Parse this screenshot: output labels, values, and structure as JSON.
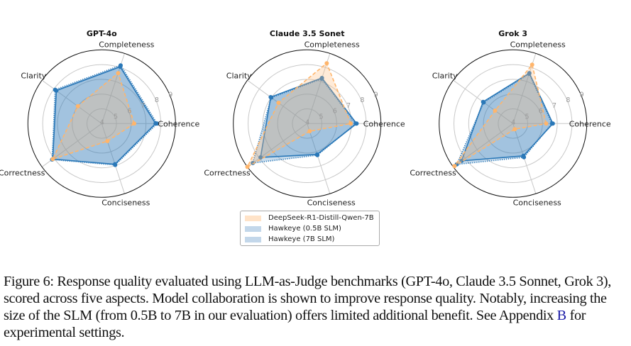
{
  "chart_data": [
    {
      "type": "radar",
      "title": "GPT-4o",
      "axes": [
        "Coherence",
        "Completeness",
        "Clarity",
        "Correctness",
        "Conciseness"
      ],
      "rlim": [
        4,
        9
      ],
      "rticks": [
        "4",
        "5",
        "6",
        "7",
        "8",
        "9"
      ],
      "grid": true,
      "series": [
        {
          "name": "DeepSeek-R1-Distill-Qwen-7B",
          "values": [
            6.2,
            7.6,
            6.0,
            8.1,
            5.25
          ]
        },
        {
          "name": "Hawkeye (0.5B SLM)",
          "values": [
            7.75,
            8.15,
            7.9,
            8.15,
            6.95
          ]
        },
        {
          "name": "Hawkeye (7B SLM)",
          "values": [
            7.65,
            8.05,
            7.8,
            8.1,
            6.9
          ]
        }
      ]
    },
    {
      "type": "radar",
      "title": "Claude 3.5 Sonet",
      "axes": [
        "Coherence",
        "Completeness",
        "Clarity",
        "Correctness",
        "Conciseness"
      ],
      "rlim": [
        4,
        9
      ],
      "rticks": [
        "4",
        "5",
        "6",
        "7",
        "8",
        "9"
      ],
      "grid": true,
      "series": [
        {
          "name": "DeepSeek-R1-Distill-Qwen-7B",
          "values": [
            6.95,
            8.3,
            6.4,
            9.0,
            4.55
          ]
        },
        {
          "name": "Hawkeye (0.5B SLM)",
          "values": [
            7.3,
            7.2,
            7.0,
            8.55,
            6.25
          ]
        },
        {
          "name": "Hawkeye (7B SLM)",
          "values": [
            7.35,
            7.25,
            7.05,
            7.9,
            6.2
          ]
        }
      ]
    },
    {
      "type": "radar",
      "title": "Grok 3",
      "axes": [
        "Coherence",
        "Completeness",
        "Clarity",
        "Correctness",
        "Conciseness"
      ],
      "rlim": [
        4,
        9
      ],
      "rticks": [
        "4",
        "5",
        "6",
        "7",
        "8",
        "9"
      ],
      "grid": true,
      "series": [
        {
          "name": "DeepSeek-R1-Distill-Qwen-7B",
          "values": [
            6.25,
            8.2,
            5.5,
            8.9,
            4.4
          ]
        },
        {
          "name": "Hawkeye (0.5B SLM)",
          "values": [
            6.65,
            7.55,
            6.45,
            8.7,
            6.4
          ]
        },
        {
          "name": "Hawkeye (7B SLM)",
          "values": [
            6.7,
            7.6,
            6.5,
            8.3,
            6.3
          ]
        }
      ]
    }
  ],
  "legend": {
    "items": [
      {
        "label": "DeepSeek-R1-Distill-Qwen-7B",
        "color": "#ffe3c8"
      },
      {
        "label": "Hawkeye (0.5B SLM)",
        "color": "#c3d7ea"
      },
      {
        "label": "Hawkeye (7B SLM)",
        "color": "#c3d7ea"
      }
    ]
  },
  "colors": {
    "deepseek_line": "#ffb56b",
    "deepseek_fill": "#ffbe7d",
    "hawkeye_line": "#2a78b8",
    "hawkeye_fill": "#2a78b8"
  },
  "caption": {
    "text_before_link": "Figure 6: Response quality evaluated using LLM-as-Judge benchmarks (GPT-4o, Claude 3.5 Sonnet, Grok 3), scored across five aspects. Model collaboration is shown to improve response quality. Notably, increasing the size of the SLM (from 0.5B to 7B in our evaluation) offers limited additional benefit. See Appendix ",
    "link": "B",
    "text_after_link": " for experimental settings."
  }
}
